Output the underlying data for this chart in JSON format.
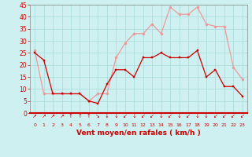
{
  "x": [
    0,
    1,
    2,
    3,
    4,
    5,
    6,
    7,
    8,
    9,
    10,
    11,
    12,
    13,
    14,
    15,
    16,
    17,
    18,
    19,
    20,
    21,
    22,
    23
  ],
  "mean_wind": [
    25,
    22,
    8,
    8,
    8,
    8,
    5,
    4,
    12,
    18,
    18,
    15,
    23,
    23,
    25,
    23,
    23,
    23,
    26,
    15,
    18,
    11,
    11,
    7
  ],
  "gust_wind": [
    26,
    8,
    8,
    8,
    8,
    8,
    5,
    8,
    8,
    23,
    29,
    33,
    33,
    37,
    33,
    44,
    41,
    41,
    44,
    37,
    36,
    36,
    19,
    14
  ],
  "ylim": [
    0,
    45
  ],
  "yticks": [
    0,
    5,
    10,
    15,
    20,
    25,
    30,
    35,
    40,
    45
  ],
  "xlabel": "Vent moyen/en rafales ( km/h )",
  "bg_color": "#cff0f0",
  "grid_color": "#aadddd",
  "mean_color": "#cc0000",
  "gust_color": "#ee9999",
  "label_color": "#cc0000",
  "arrow_symbols": [
    "↗",
    "↗",
    "↗",
    "↗",
    "↑",
    "↑",
    "↑",
    "↘",
    "↓",
    "↓",
    "↙",
    "↓",
    "↙",
    "↙",
    "↓",
    "↙",
    "↓",
    "↙",
    "↓",
    "↓",
    "↙",
    "↙",
    "↙",
    "↙"
  ]
}
